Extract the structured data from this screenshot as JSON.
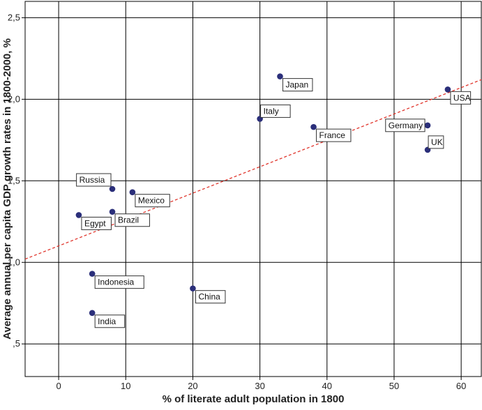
{
  "chart_data": {
    "type": "scatter",
    "title": "",
    "xlabel": "% of literate adult population in 1800",
    "ylabel": "Average annual per capita GDP growth rates in 1800-2000, %",
    "xlim": [
      -5,
      63
    ],
    "ylim": [
      0.3,
      2.6
    ],
    "x_ticks": [
      0,
      10,
      20,
      30,
      40,
      50,
      60
    ],
    "x_tick_labels": [
      "0",
      "10",
      "20",
      "30",
      "40",
      "50",
      "60"
    ],
    "y_ticks": [
      0.5,
      1.0,
      1.5,
      2.0,
      2.5
    ],
    "y_tick_labels": [
      ",5",
      "1,0",
      "1,5",
      "2,0",
      "2,5"
    ],
    "grid": true,
    "points": [
      {
        "label": "Russia",
        "x": 8,
        "y": 1.45,
        "label_pos": "upper-left"
      },
      {
        "label": "Mexico",
        "x": 11,
        "y": 1.43,
        "label_pos": "lower-right"
      },
      {
        "label": "Egypt",
        "x": 3,
        "y": 1.29,
        "label_pos": "lower-right"
      },
      {
        "label": "Brazil",
        "x": 8,
        "y": 1.31,
        "label_pos": "lower-right"
      },
      {
        "label": "Indonesia",
        "x": 5,
        "y": 0.93,
        "label_pos": "lower-right"
      },
      {
        "label": "India",
        "x": 5,
        "y": 0.69,
        "label_pos": "lower-right"
      },
      {
        "label": "China",
        "x": 20,
        "y": 0.84,
        "label_pos": "lower-right"
      },
      {
        "label": "Italy",
        "x": 30,
        "y": 1.88,
        "label_pos": "upper-right"
      },
      {
        "label": "Japan",
        "x": 33,
        "y": 2.14,
        "label_pos": "lower-right"
      },
      {
        "label": "France",
        "x": 38,
        "y": 1.83,
        "label_pos": "lower-right"
      },
      {
        "label": "Germany",
        "x": 55,
        "y": 1.84,
        "label_pos": "left"
      },
      {
        "label": "UK",
        "x": 55,
        "y": 1.69,
        "label_pos": "upper-right"
      },
      {
        "label": "USA",
        "x": 58,
        "y": 2.06,
        "label_pos": "lower-right"
      }
    ],
    "fit_line": {
      "style": "dashed",
      "x_start": -5,
      "y_start": 1.02,
      "x_end": 63,
      "y_end": 2.12
    },
    "colors": {
      "point": "#2b2f7a",
      "fit_line": "#e0342b",
      "grid": "#000000",
      "background": "#ffffff"
    }
  }
}
